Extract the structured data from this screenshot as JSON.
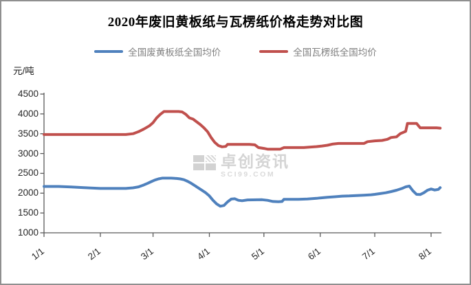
{
  "title": "2020年废旧黄板纸与瓦楞纸价格走势对比图",
  "y_axis_unit": "元/吨",
  "watermark": {
    "name": "卓创资讯",
    "site": "SCI99.COM"
  },
  "colors": {
    "axis": "#595959",
    "waste_paper_blue": "#4F81BD",
    "corrugated_red": "#C0504D"
  },
  "chart_data": {
    "type": "line",
    "title": "2020年废旧黄板纸与瓦楞纸价格走势对比图",
    "xlabel": "",
    "ylabel": "元/吨",
    "ylim": [
      1000,
      4500
    ],
    "grid": false,
    "legend_position": "top",
    "y_ticks": [
      1000,
      1500,
      2000,
      2500,
      3000,
      3500,
      4000,
      4500
    ],
    "x_ticks": [
      {
        "label": "1/1",
        "day": 0
      },
      {
        "label": "2/1",
        "day": 31
      },
      {
        "label": "3/1",
        "day": 60
      },
      {
        "label": "4/1",
        "day": 91
      },
      {
        "label": "5/1",
        "day": 121
      },
      {
        "label": "6/1",
        "day": 152
      },
      {
        "label": "7/1",
        "day": 182
      },
      {
        "label": "8/1",
        "day": 213
      }
    ],
    "x_range_days": [
      0,
      218
    ],
    "series": [
      {
        "name": "全国废黄板纸全国均价",
        "color": "#4F81BD",
        "points": [
          [
            0,
            2170
          ],
          [
            8,
            2170
          ],
          [
            15,
            2155
          ],
          [
            22,
            2140
          ],
          [
            31,
            2120
          ],
          [
            45,
            2120
          ],
          [
            49,
            2135
          ],
          [
            52,
            2160
          ],
          [
            55,
            2210
          ],
          [
            57,
            2250
          ],
          [
            59,
            2290
          ],
          [
            61,
            2330
          ],
          [
            63,
            2360
          ],
          [
            65,
            2380
          ],
          [
            70,
            2380
          ],
          [
            73,
            2370
          ],
          [
            75,
            2360
          ],
          [
            77,
            2340
          ],
          [
            79,
            2300
          ],
          [
            81,
            2250
          ],
          [
            83,
            2190
          ],
          [
            85,
            2130
          ],
          [
            87,
            2070
          ],
          [
            89,
            2010
          ],
          [
            91,
            1930
          ],
          [
            93,
            1820
          ],
          [
            95,
            1730
          ],
          [
            97,
            1670
          ],
          [
            99,
            1690
          ],
          [
            101,
            1780
          ],
          [
            103,
            1850
          ],
          [
            105,
            1860
          ],
          [
            107,
            1820
          ],
          [
            109,
            1810
          ],
          [
            112,
            1830
          ],
          [
            120,
            1835
          ],
          [
            123,
            1820
          ],
          [
            126,
            1790
          ],
          [
            129,
            1785
          ],
          [
            131,
            1790
          ],
          [
            132,
            1845
          ],
          [
            140,
            1845
          ],
          [
            145,
            1855
          ],
          [
            150,
            1870
          ],
          [
            152,
            1880
          ],
          [
            156,
            1895
          ],
          [
            160,
            1910
          ],
          [
            164,
            1925
          ],
          [
            168,
            1930
          ],
          [
            172,
            1940
          ],
          [
            176,
            1950
          ],
          [
            180,
            1960
          ],
          [
            182,
            1970
          ],
          [
            185,
            1990
          ],
          [
            188,
            2010
          ],
          [
            191,
            2040
          ],
          [
            194,
            2075
          ],
          [
            197,
            2120
          ],
          [
            199,
            2160
          ],
          [
            201,
            2180
          ],
          [
            203,
            2060
          ],
          [
            205,
            1970
          ],
          [
            207,
            1965
          ],
          [
            209,
            2010
          ],
          [
            211,
            2075
          ],
          [
            213,
            2105
          ],
          [
            215,
            2080
          ],
          [
            217,
            2095
          ],
          [
            218,
            2140
          ]
        ]
      },
      {
        "name": "全国瓦楞纸全国均价",
        "color": "#C0504D",
        "points": [
          [
            0,
            3480
          ],
          [
            14,
            3480
          ],
          [
            31,
            3480
          ],
          [
            45,
            3480
          ],
          [
            49,
            3500
          ],
          [
            52,
            3550
          ],
          [
            55,
            3620
          ],
          [
            58,
            3700
          ],
          [
            60,
            3780
          ],
          [
            62,
            3900
          ],
          [
            64,
            3990
          ],
          [
            66,
            4060
          ],
          [
            74,
            4060
          ],
          [
            76,
            4050
          ],
          [
            78,
            3990
          ],
          [
            80,
            3900
          ],
          [
            82,
            3870
          ],
          [
            84,
            3800
          ],
          [
            86,
            3730
          ],
          [
            88,
            3650
          ],
          [
            90,
            3550
          ],
          [
            92,
            3400
          ],
          [
            94,
            3280
          ],
          [
            96,
            3200
          ],
          [
            98,
            3170
          ],
          [
            100,
            3180
          ],
          [
            101,
            3230
          ],
          [
            113,
            3230
          ],
          [
            116,
            3220
          ],
          [
            118,
            3150
          ],
          [
            121,
            3130
          ],
          [
            123,
            3110
          ],
          [
            130,
            3110
          ],
          [
            132,
            3150
          ],
          [
            143,
            3150
          ],
          [
            146,
            3160
          ],
          [
            150,
            3175
          ],
          [
            153,
            3190
          ],
          [
            156,
            3210
          ],
          [
            159,
            3240
          ],
          [
            162,
            3255
          ],
          [
            176,
            3255
          ],
          [
            178,
            3300
          ],
          [
            182,
            3320
          ],
          [
            186,
            3330
          ],
          [
            189,
            3360
          ],
          [
            191,
            3405
          ],
          [
            194,
            3420
          ],
          [
            196,
            3500
          ],
          [
            198,
            3540
          ],
          [
            199,
            3560
          ],
          [
            200,
            3760
          ],
          [
            205,
            3760
          ],
          [
            207,
            3650
          ],
          [
            216,
            3650
          ],
          [
            218,
            3640
          ]
        ]
      }
    ]
  }
}
